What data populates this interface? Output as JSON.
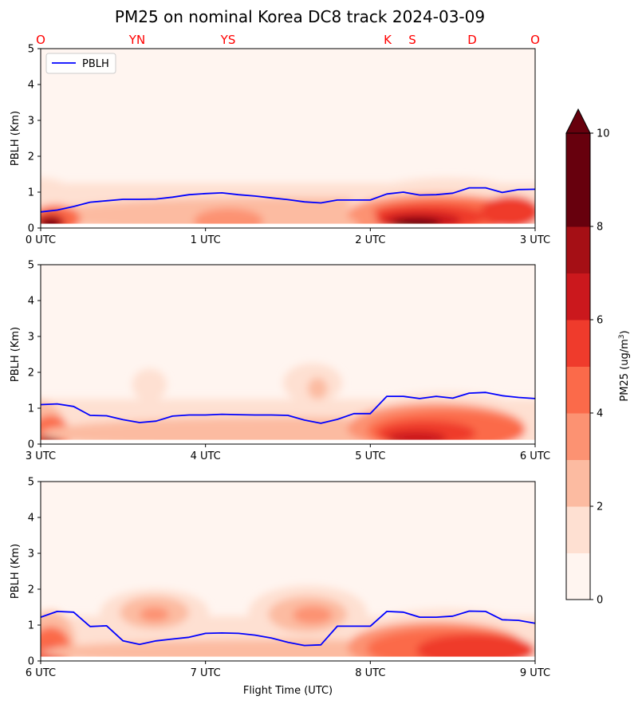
{
  "title": "PM25 on nominal Korea DC8 track 2024-03-09",
  "colors": {
    "pblh_line": "#0000ff",
    "waypoint_text": "#ff0000",
    "levels": [
      "#fff5f0",
      "#fee0d2",
      "#fcbba1",
      "#fc9272",
      "#fb6a4a",
      "#ef3b2c",
      "#cb181d",
      "#a50f15",
      "#67000d",
      "#67000d",
      "#67000d"
    ]
  },
  "waypoints": [
    "O",
    "YN",
    "YS",
    "K",
    "S",
    "D",
    "O"
  ],
  "legend_label": "PBLH",
  "ylabel": "PBLH (Km)",
  "xlabel": "Flight Time (UTC)",
  "colorbar": {
    "label": "PM25 (ug/m",
    "label_sup": "3",
    "label_close": ")",
    "ticks": [
      "0",
      "2",
      "4",
      "6",
      "8",
      "10"
    ],
    "levels": [
      0,
      1,
      2,
      3,
      4,
      5,
      6,
      7,
      8,
      9,
      10
    ],
    "extend": "max"
  },
  "chart_data": [
    {
      "type": "area",
      "panel": 1,
      "title": "",
      "ylabel": "PBLH (Km)",
      "xlim": [
        0,
        3
      ],
      "ylim": [
        0,
        5
      ],
      "xticks": [
        "0 UTC",
        "1 UTC",
        "2 UTC",
        "3 UTC"
      ],
      "yticks": [
        "0",
        "1",
        "2",
        "3",
        "4",
        "5"
      ],
      "legend_placement": "top-left",
      "series": [
        {
          "name": "PBLH",
          "x": [
            0,
            0.1,
            0.2,
            0.3,
            0.4,
            0.5,
            0.6,
            0.7,
            0.8,
            0.9,
            1.0,
            1.1,
            1.2,
            1.3,
            1.4,
            1.5,
            1.6,
            1.7,
            1.8,
            1.9,
            2.0,
            2.1,
            2.2,
            2.3,
            2.4,
            2.5,
            2.6,
            2.7,
            2.8,
            2.9,
            3.0
          ],
          "y": [
            0.45,
            0.5,
            0.6,
            0.72,
            0.76,
            0.8,
            0.8,
            0.81,
            0.86,
            0.93,
            0.96,
            0.98,
            0.93,
            0.89,
            0.84,
            0.79,
            0.73,
            0.7,
            0.78,
            0.78,
            0.78,
            0.95,
            1.0,
            0.92,
            0.93,
            0.97,
            1.12,
            1.12,
            0.99,
            1.07,
            1.08
          ]
        }
      ]
    },
    {
      "type": "area",
      "panel": 2,
      "title": "",
      "ylabel": "PBLH (Km)",
      "xlim": [
        3,
        6
      ],
      "ylim": [
        0,
        5
      ],
      "xticks": [
        "3 UTC",
        "4 UTC",
        "5 UTC",
        "6 UTC"
      ],
      "yticks": [
        "0",
        "1",
        "2",
        "3",
        "4",
        "5"
      ],
      "series": [
        {
          "name": "PBLH",
          "x": [
            3.0,
            3.1,
            3.2,
            3.3,
            3.4,
            3.5,
            3.6,
            3.7,
            3.8,
            3.9,
            4.0,
            4.1,
            4.2,
            4.3,
            4.4,
            4.5,
            4.6,
            4.7,
            4.8,
            4.9,
            5.0,
            5.1,
            5.2,
            5.3,
            5.4,
            5.5,
            5.6,
            5.7,
            5.8,
            5.9,
            6.0
          ],
          "y": [
            1.1,
            1.12,
            1.05,
            0.8,
            0.79,
            0.68,
            0.6,
            0.64,
            0.78,
            0.81,
            0.81,
            0.83,
            0.82,
            0.81,
            0.81,
            0.8,
            0.67,
            0.58,
            0.69,
            0.85,
            0.85,
            1.33,
            1.33,
            1.27,
            1.33,
            1.28,
            1.42,
            1.44,
            1.35,
            1.3,
            1.27
          ]
        }
      ]
    },
    {
      "type": "area",
      "panel": 3,
      "title": "",
      "ylabel": "PBLH (Km)",
      "xlabel": "Flight Time (UTC)",
      "xlim": [
        6,
        9
      ],
      "ylim": [
        0,
        5
      ],
      "xticks": [
        "6 UTC",
        "7 UTC",
        "8 UTC",
        "9 UTC"
      ],
      "yticks": [
        "0",
        "1",
        "2",
        "3",
        "4",
        "5"
      ],
      "series": [
        {
          "name": "PBLH",
          "x": [
            6.0,
            6.1,
            6.2,
            6.3,
            6.4,
            6.5,
            6.6,
            6.7,
            6.8,
            6.9,
            7.0,
            7.1,
            7.2,
            7.3,
            7.4,
            7.5,
            7.6,
            7.7,
            7.8,
            7.9,
            8.0,
            8.1,
            8.2,
            8.3,
            8.4,
            8.5,
            8.6,
            8.7,
            8.8,
            8.9,
            9.0
          ],
          "y": [
            1.22,
            1.38,
            1.36,
            0.96,
            0.98,
            0.56,
            0.46,
            0.56,
            0.61,
            0.66,
            0.77,
            0.78,
            0.77,
            0.72,
            0.64,
            0.52,
            0.43,
            0.45,
            0.97,
            0.97,
            0.97,
            1.38,
            1.36,
            1.22,
            1.22,
            1.25,
            1.39,
            1.38,
            1.15,
            1.13,
            1.05
          ]
        }
      ]
    }
  ]
}
